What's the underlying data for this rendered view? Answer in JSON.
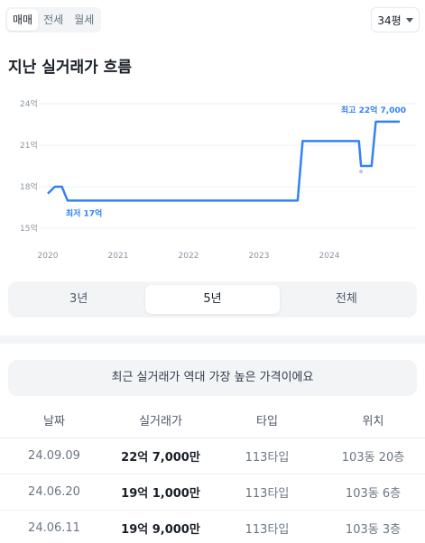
{
  "trade_tabs": [
    "매매",
    "전세",
    "월세"
  ],
  "size_select": {
    "value": "34평"
  },
  "title": "지난 실거래가 흐름",
  "chart_data": {
    "type": "line",
    "x_tick_labels": [
      "2020",
      "2021",
      "2022",
      "2023",
      "2024"
    ],
    "y_tick_labels": [
      "24억",
      "21억",
      "18억",
      "15억"
    ],
    "ylim": [
      15,
      24
    ],
    "xlim": [
      2020.0,
      2025.2
    ],
    "grid": true,
    "series": [
      {
        "color": "#3182f6",
        "x": [
          2020.0,
          2020.1,
          2020.2,
          2020.28,
          2020.8,
          2021.5,
          2022.2,
          2022.9,
          2023.55,
          2023.62,
          2024.0,
          2024.3,
          2024.42,
          2024.45,
          2024.6,
          2024.66,
          2024.7,
          2025.0
        ],
        "y": [
          17.5,
          18.0,
          18.0,
          17.0,
          17.0,
          17.0,
          17.0,
          17.0,
          17.0,
          21.3,
          21.3,
          21.3,
          21.3,
          19.5,
          19.5,
          22.7,
          22.7,
          22.7
        ]
      }
    ],
    "extra_points": [
      {
        "x": 2024.45,
        "y": 19.1
      }
    ],
    "annotations": [
      {
        "label": "최저 17억",
        "x": 2020.28,
        "y": 17.0
      },
      {
        "label": "최고 22억 7,000",
        "x": 2024.66,
        "y": 22.7
      }
    ]
  },
  "periods": [
    "3년",
    "5년",
    "전체"
  ],
  "active_period": "5년",
  "notice": "최근 실거래가 역대 가장 높은 가격이에요",
  "table": {
    "headers": [
      "날짜",
      "실거래가",
      "타입",
      "위치"
    ],
    "rows": [
      [
        "24.09.09",
        "22억 7,000만",
        "113타입",
        "103동 20층"
      ],
      [
        "24.06.20",
        "19억 1,000만",
        "113타입",
        "103동 6층"
      ],
      [
        "24.06.11",
        "19억 9,000만",
        "113타입",
        "103동 3층"
      ]
    ]
  }
}
